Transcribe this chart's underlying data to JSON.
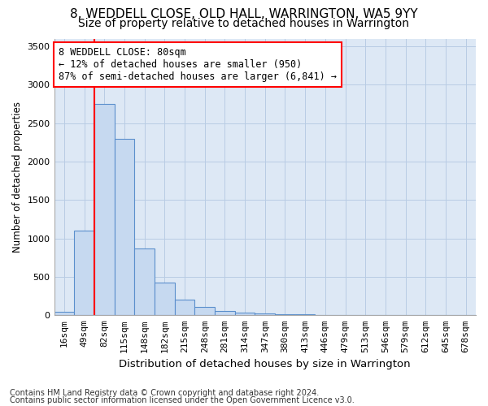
{
  "title": "8, WEDDELL CLOSE, OLD HALL, WARRINGTON, WA5 9YY",
  "subtitle": "Size of property relative to detached houses in Warrington",
  "xlabel": "Distribution of detached houses by size in Warrington",
  "ylabel": "Number of detached properties",
  "footer_line1": "Contains HM Land Registry data © Crown copyright and database right 2024.",
  "footer_line2": "Contains public sector information licensed under the Open Government Licence v3.0.",
  "bar_labels": [
    "16sqm",
    "49sqm",
    "82sqm",
    "115sqm",
    "148sqm",
    "182sqm",
    "215sqm",
    "248sqm",
    "281sqm",
    "314sqm",
    "347sqm",
    "380sqm",
    "413sqm",
    "446sqm",
    "479sqm",
    "513sqm",
    "546sqm",
    "579sqm",
    "612sqm",
    "645sqm",
    "678sqm"
  ],
  "bar_values": [
    50,
    1100,
    2750,
    2300,
    870,
    430,
    200,
    110,
    60,
    40,
    25,
    15,
    10,
    6,
    4,
    3,
    2,
    1,
    1,
    0,
    0
  ],
  "bar_color": "#c6d9f0",
  "bar_edge_color": "#5b8fcc",
  "plot_bg_color": "#dde8f5",
  "grid_color": "#b8cce4",
  "vline_x_index": 2,
  "vline_color": "red",
  "annotation_text": "8 WEDDELL CLOSE: 80sqm\n← 12% of detached houses are smaller (950)\n87% of semi-detached houses are larger (6,841) →",
  "annotation_box_color": "white",
  "annotation_box_edge_color": "red",
  "ylim": [
    0,
    3600
  ],
  "yticks": [
    0,
    500,
    1000,
    1500,
    2000,
    2500,
    3000,
    3500
  ],
  "title_fontsize": 11,
  "subtitle_fontsize": 10,
  "xlabel_fontsize": 9.5,
  "ylabel_fontsize": 8.5,
  "tick_fontsize": 8,
  "annotation_fontsize": 8.5,
  "footer_fontsize": 7
}
